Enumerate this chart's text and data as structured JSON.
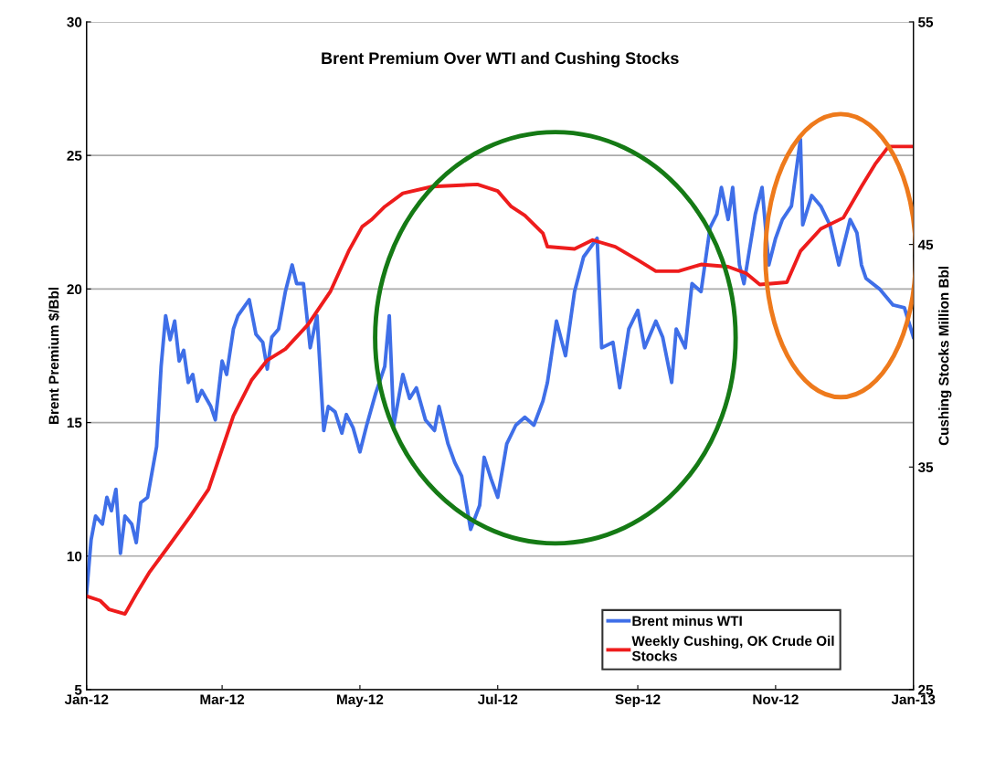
{
  "chart_data": {
    "type": "line",
    "title": "Brent Premium Over WTI and Cushing Stocks",
    "ylabel": "Brent Premium $/Bbl",
    "y2label": "Cushing Stocks Million Bbl",
    "xlim": [
      "2012-01-01",
      "2013-01-01"
    ],
    "xticks": [
      {
        "value": "2012-01-01",
        "label": "Jan-12"
      },
      {
        "value": "2012-03-01",
        "label": "Mar-12"
      },
      {
        "value": "2012-05-01",
        "label": "May-12"
      },
      {
        "value": "2012-07-01",
        "label": "Jul-12"
      },
      {
        "value": "2012-09-01",
        "label": "Sep-12"
      },
      {
        "value": "2012-11-01",
        "label": "Nov-12"
      },
      {
        "value": "2013-01-01",
        "label": "Jan-13"
      }
    ],
    "ylim": [
      5,
      30
    ],
    "yticks": [
      5,
      10,
      15,
      20,
      25,
      30
    ],
    "y2lim": [
      25,
      55
    ],
    "y2ticks": [
      25,
      35,
      45,
      55
    ],
    "grid": "y",
    "legend": "bottom right",
    "series": [
      {
        "name": "Brent minus WTI",
        "color": "#3f6fe8",
        "x": [
          "2012-01-01",
          "2012-01-03",
          "2012-01-05",
          "2012-01-08",
          "2012-01-10",
          "2012-01-12",
          "2012-01-14",
          "2012-01-16",
          "2012-01-18",
          "2012-01-21",
          "2012-01-23",
          "2012-01-25",
          "2012-01-28",
          "2012-02-01",
          "2012-02-03",
          "2012-02-05",
          "2012-02-07",
          "2012-02-09",
          "2012-02-11",
          "2012-02-13",
          "2012-02-15",
          "2012-02-17",
          "2012-02-19",
          "2012-02-21",
          "2012-02-25",
          "2012-02-27",
          "2012-03-01",
          "2012-03-03",
          "2012-03-06",
          "2012-03-08",
          "2012-03-13",
          "2012-03-16",
          "2012-03-19",
          "2012-03-21",
          "2012-03-23",
          "2012-03-26",
          "2012-03-29",
          "2012-04-01",
          "2012-04-03",
          "2012-04-06",
          "2012-04-09",
          "2012-04-12",
          "2012-04-15",
          "2012-04-17",
          "2012-04-20",
          "2012-04-23",
          "2012-04-25",
          "2012-04-28",
          "2012-05-01",
          "2012-05-04",
          "2012-05-08",
          "2012-05-12",
          "2012-05-14",
          "2012-05-16",
          "2012-05-20",
          "2012-05-23",
          "2012-05-26",
          "2012-05-30",
          "2012-06-03",
          "2012-06-05",
          "2012-06-09",
          "2012-06-12",
          "2012-06-15",
          "2012-06-19",
          "2012-06-23",
          "2012-06-25",
          "2012-06-28",
          "2012-07-01",
          "2012-07-05",
          "2012-07-09",
          "2012-07-13",
          "2012-07-17",
          "2012-07-21",
          "2012-07-23",
          "2012-07-27",
          "2012-07-31",
          "2012-08-04",
          "2012-08-08",
          "2012-08-14",
          "2012-08-16",
          "2012-08-21",
          "2012-08-24",
          "2012-08-28",
          "2012-09-01",
          "2012-09-04",
          "2012-09-09",
          "2012-09-12",
          "2012-09-16",
          "2012-09-18",
          "2012-09-22",
          "2012-09-25",
          "2012-09-29",
          "2012-10-03",
          "2012-10-06",
          "2012-10-08",
          "2012-10-11",
          "2012-10-13",
          "2012-10-16",
          "2012-10-18",
          "2012-10-23",
          "2012-10-26",
          "2012-10-29",
          "2012-11-01",
          "2012-11-04",
          "2012-11-08",
          "2012-11-12",
          "2012-11-13",
          "2012-11-17",
          "2012-11-21",
          "2012-11-25",
          "2012-11-29",
          "2012-12-04",
          "2012-12-07",
          "2012-12-09",
          "2012-12-11",
          "2012-12-17",
          "2012-12-23",
          "2012-12-28",
          "2013-01-01"
        ],
        "values": [
          8.6,
          10.6,
          11.5,
          11.2,
          12.2,
          11.7,
          12.5,
          10.1,
          11.5,
          11.2,
          10.5,
          12.0,
          12.2,
          14.1,
          17.1,
          19.0,
          18.1,
          18.8,
          17.3,
          17.7,
          16.5,
          16.8,
          15.8,
          16.2,
          15.6,
          15.1,
          17.3,
          16.8,
          18.5,
          19.0,
          19.6,
          18.3,
          18.0,
          17.0,
          18.2,
          18.5,
          19.9,
          20.9,
          20.2,
          20.2,
          17.8,
          19.0,
          14.7,
          15.6,
          15.4,
          14.6,
          15.3,
          14.8,
          13.9,
          14.9,
          16.1,
          17.1,
          19.0,
          14.9,
          16.8,
          15.9,
          16.3,
          15.1,
          14.7,
          15.6,
          14.2,
          13.5,
          13.0,
          11.0,
          11.9,
          13.7,
          12.9,
          12.2,
          14.2,
          14.9,
          15.2,
          14.9,
          15.8,
          16.5,
          18.8,
          17.5,
          19.9,
          21.2,
          21.9,
          17.8,
          18.0,
          16.3,
          18.5,
          19.2,
          17.8,
          18.8,
          18.2,
          16.5,
          18.5,
          17.8,
          20.2,
          19.9,
          22.3,
          22.8,
          23.8,
          22.6,
          23.8,
          20.9,
          20.2,
          22.8,
          23.8,
          20.9,
          21.9,
          22.6,
          23.1,
          25.6,
          22.4,
          23.5,
          23.1,
          22.4,
          20.9,
          22.6,
          22.1,
          20.9,
          20.4,
          20.0,
          19.4,
          19.3,
          18.2
        ]
      },
      {
        "name": "Weekly Cushing, OK Crude Oil\nStocks",
        "color": "#ee1c1c",
        "axis": "y2",
        "x": [
          "2012-01-01",
          "2012-01-07",
          "2012-01-11",
          "2012-01-18",
          "2012-01-23",
          "2012-01-29",
          "2012-02-06",
          "2012-02-16",
          "2012-02-24",
          "2012-03-02",
          "2012-03-06",
          "2012-03-14",
          "2012-03-21",
          "2012-03-29",
          "2012-04-08",
          "2012-04-18",
          "2012-04-26",
          "2012-05-02",
          "2012-05-06",
          "2012-05-12",
          "2012-05-20",
          "2012-06-02",
          "2012-06-22",
          "2012-07-01",
          "2012-07-07",
          "2012-07-13",
          "2012-07-21",
          "2012-07-23",
          "2012-08-04",
          "2012-08-12",
          "2012-08-22",
          "2012-09-01",
          "2012-09-09",
          "2012-09-19",
          "2012-09-29",
          "2012-10-11",
          "2012-10-19",
          "2012-10-25",
          "2012-11-06",
          "2012-11-12",
          "2012-11-21",
          "2012-12-01",
          "2012-12-09",
          "2012-12-15",
          "2012-12-21",
          "2013-01-01"
        ],
        "values": [
          29.2,
          29.0,
          28.6,
          28.4,
          29.3,
          30.3,
          31.4,
          32.8,
          34.0,
          36.1,
          37.3,
          38.9,
          39.8,
          40.3,
          41.4,
          42.9,
          44.7,
          45.8,
          46.1,
          46.7,
          47.3,
          47.6,
          47.7,
          47.4,
          46.7,
          46.3,
          45.5,
          44.9,
          44.8,
          45.2,
          44.9,
          44.3,
          43.8,
          43.8,
          44.1,
          44.0,
          43.7,
          43.2,
          43.3,
          44.7,
          45.7,
          46.2,
          47.6,
          48.6,
          49.4,
          49.4
        ]
      }
    ]
  }
}
